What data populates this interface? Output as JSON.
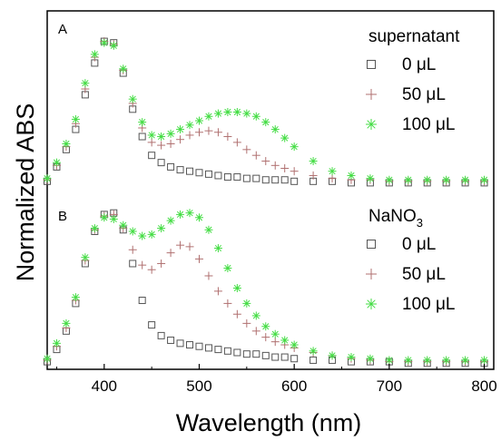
{
  "chart_data": {
    "type": "scatter",
    "xlabel": "Wavelength (nm)",
    "ylabel": "Normalized ABS",
    "xlim": [
      340,
      810
    ],
    "x_ticks": [
      "400",
      "500",
      "600",
      "700",
      "800"
    ],
    "y_ticks_labeled": false,
    "grid": false,
    "panels": [
      {
        "label": "A",
        "legend_title": "supernatant",
        "legend_title_sub": "",
        "legend_position": "top-right",
        "series": [
          {
            "name": "0 μL",
            "marker": "square",
            "color": "#555555",
            "x": [
              340,
              350,
              360,
              370,
              380,
              390,
              400,
              410,
              420,
              430,
              440,
              450,
              460,
              470,
              480,
              490,
              500,
              510,
              520,
              530,
              540,
              550,
              560,
              570,
              580,
              590,
              600,
              620,
              640,
              660,
              680,
              700,
              720,
              740,
              760,
              780,
              800
            ],
            "y": [
              0.02,
              0.12,
              0.24,
              0.38,
              0.62,
              0.84,
              0.99,
              0.98,
              0.77,
              0.52,
              0.33,
              0.2,
              0.15,
              0.12,
              0.1,
              0.09,
              0.08,
              0.07,
              0.06,
              0.05,
              0.05,
              0.04,
              0.04,
              0.03,
              0.03,
              0.03,
              0.02,
              0.02,
              0.02,
              0.01,
              0.01,
              0.01,
              0.01,
              0.01,
              0.01,
              0.01,
              0.01
            ]
          },
          {
            "name": "50 μL",
            "marker": "plus",
            "color": "#b07070",
            "x": [
              340,
              350,
              360,
              370,
              380,
              390,
              400,
              410,
              420,
              430,
              440,
              450,
              460,
              470,
              480,
              490,
              500,
              510,
              520,
              530,
              540,
              550,
              560,
              570,
              580,
              590,
              600,
              620,
              640,
              660,
              680,
              700,
              720,
              740,
              760,
              780,
              800
            ],
            "y": [
              0.03,
              0.13,
              0.26,
              0.42,
              0.66,
              0.88,
              0.99,
              0.97,
              0.79,
              0.56,
              0.39,
              0.29,
              0.27,
              0.28,
              0.31,
              0.34,
              0.36,
              0.37,
              0.36,
              0.33,
              0.29,
              0.24,
              0.2,
              0.16,
              0.13,
              0.11,
              0.09,
              0.06,
              0.04,
              0.03,
              0.03,
              0.02,
              0.02,
              0.02,
              0.02,
              0.02,
              0.02
            ]
          },
          {
            "name": "100 μL",
            "marker": "asterisk",
            "color": "#44dd44",
            "x": [
              340,
              350,
              360,
              370,
              380,
              390,
              400,
              410,
              420,
              430,
              440,
              450,
              460,
              470,
              480,
              490,
              500,
              510,
              520,
              530,
              540,
              550,
              560,
              570,
              580,
              590,
              600,
              620,
              640,
              660,
              680,
              700,
              720,
              740,
              760,
              780,
              800
            ],
            "y": [
              0.04,
              0.15,
              0.28,
              0.45,
              0.7,
              0.9,
              0.98,
              0.96,
              0.8,
              0.59,
              0.43,
              0.34,
              0.33,
              0.35,
              0.38,
              0.41,
              0.44,
              0.47,
              0.49,
              0.5,
              0.5,
              0.49,
              0.47,
              0.43,
              0.38,
              0.32,
              0.26,
              0.16,
              0.09,
              0.06,
              0.04,
              0.03,
              0.03,
              0.03,
              0.03,
              0.03,
              0.03
            ]
          }
        ]
      },
      {
        "label": "B",
        "legend_title": "NaNO",
        "legend_title_sub": "3",
        "legend_position": "top-right",
        "series": [
          {
            "name": "0 μL",
            "marker": "square",
            "color": "#555555",
            "x": [
              340,
              350,
              360,
              370,
              380,
              390,
              400,
              410,
              420,
              430,
              440,
              450,
              460,
              470,
              480,
              490,
              500,
              510,
              520,
              530,
              540,
              550,
              560,
              570,
              580,
              590,
              600,
              620,
              640,
              660,
              680,
              700,
              720,
              740,
              760,
              780,
              800
            ],
            "y": [
              0.02,
              0.1,
              0.22,
              0.4,
              0.66,
              0.87,
              0.98,
              0.99,
              0.88,
              0.66,
              0.42,
              0.26,
              0.19,
              0.16,
              0.14,
              0.13,
              0.12,
              0.11,
              0.1,
              0.09,
              0.08,
              0.07,
              0.07,
              0.06,
              0.05,
              0.05,
              0.04,
              0.03,
              0.03,
              0.02,
              0.02,
              0.02,
              0.01,
              0.01,
              0.01,
              0.01,
              0.01
            ]
          },
          {
            "name": "50 μL",
            "marker": "plus",
            "color": "#b07070",
            "x": [
              340,
              350,
              360,
              370,
              380,
              390,
              400,
              410,
              420,
              430,
              440,
              450,
              460,
              470,
              480,
              490,
              500,
              510,
              520,
              530,
              540,
              550,
              560,
              570,
              580,
              590,
              600,
              620,
              640,
              660,
              680,
              700,
              720,
              740,
              760,
              780,
              800
            ],
            "y": [
              0.03,
              0.12,
              0.24,
              0.42,
              0.68,
              0.88,
              0.97,
              0.98,
              0.89,
              0.75,
              0.65,
              0.62,
              0.66,
              0.73,
              0.78,
              0.77,
              0.69,
              0.58,
              0.48,
              0.4,
              0.33,
              0.27,
              0.22,
              0.18,
              0.15,
              0.13,
              0.11,
              0.08,
              0.06,
              0.04,
              0.03,
              0.02,
              0.02,
              0.02,
              0.02,
              0.02,
              0.02
            ]
          },
          {
            "name": "100 μL",
            "marker": "asterisk",
            "color": "#44dd44",
            "x": [
              340,
              350,
              360,
              370,
              380,
              390,
              400,
              410,
              420,
              430,
              440,
              450,
              460,
              470,
              480,
              490,
              500,
              510,
              520,
              530,
              540,
              550,
              560,
              570,
              580,
              590,
              600,
              620,
              640,
              660,
              680,
              700,
              720,
              740,
              760,
              780,
              800
            ],
            "y": [
              0.04,
              0.14,
              0.27,
              0.44,
              0.7,
              0.89,
              0.96,
              0.95,
              0.91,
              0.87,
              0.84,
              0.85,
              0.89,
              0.94,
              0.98,
              0.99,
              0.96,
              0.88,
              0.76,
              0.63,
              0.5,
              0.4,
              0.32,
              0.25,
              0.2,
              0.16,
              0.13,
              0.09,
              0.06,
              0.05,
              0.04,
              0.03,
              0.03,
              0.03,
              0.03,
              0.03,
              0.03
            ]
          }
        ]
      }
    ]
  }
}
